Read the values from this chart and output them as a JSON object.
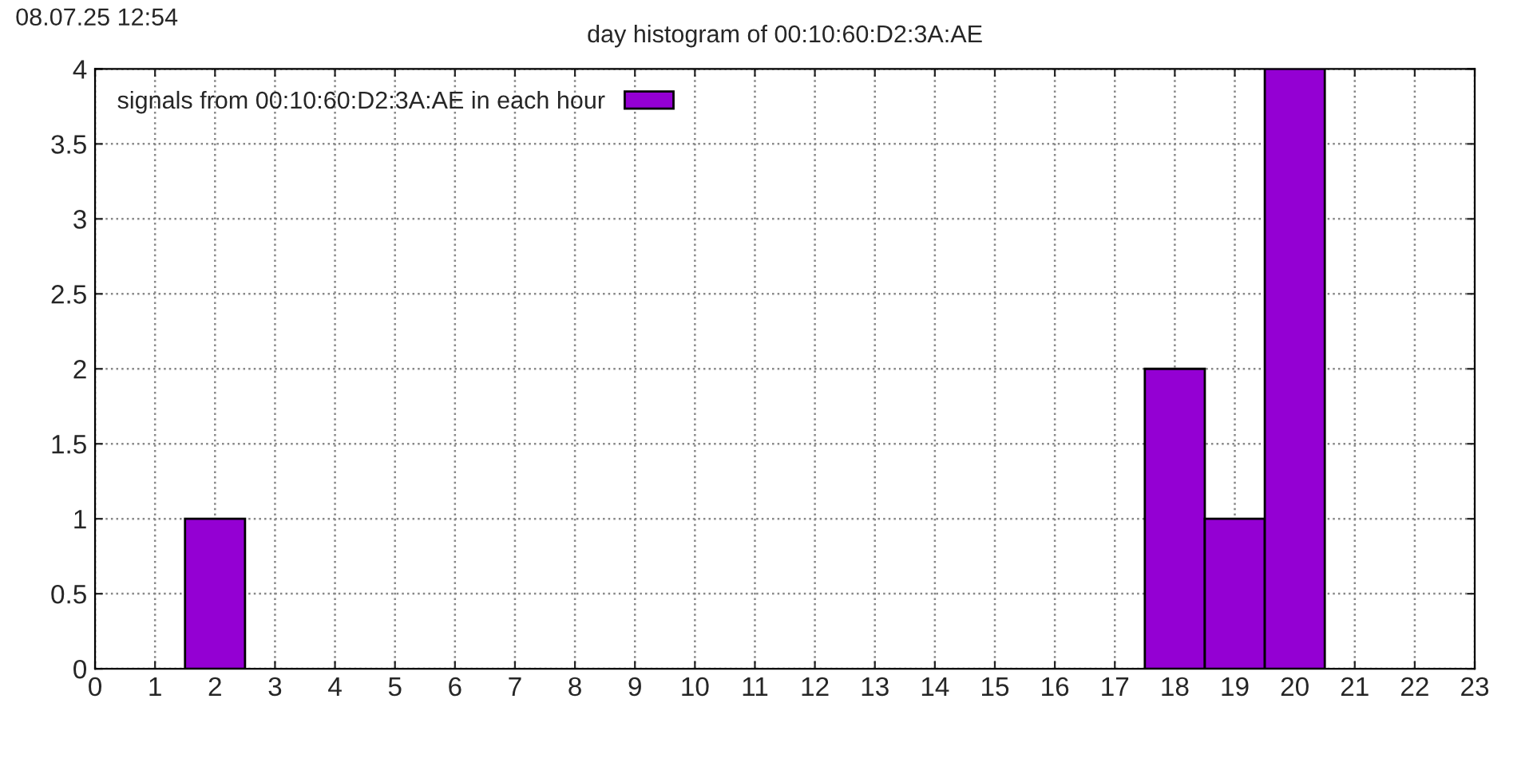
{
  "chart_data": {
    "type": "histogram",
    "title": "day histogram of 00:10:60:D2:3A:AE",
    "annotations": [
      "08.07.25 12:54"
    ],
    "bins": [
      1.5,
      2.5,
      3.5,
      4.5,
      5.5,
      6.5,
      7.5,
      8.5,
      9.5,
      10.5,
      11.5,
      12.5,
      13.5,
      14.5,
      15.5,
      16.5,
      17.5,
      18.5,
      19.5,
      20.5
    ],
    "series": [
      {
        "name": "signals from 00:10:60:D2:3A:AE in each hour",
        "color": "#9400d3",
        "values": [
          1,
          0,
          0,
          0,
          0,
          0,
          0,
          0,
          0,
          0,
          0,
          0,
          0,
          0,
          0,
          0,
          2,
          1,
          4
        ]
      }
    ],
    "xlim": [
      0,
      23
    ],
    "xticks": [
      0,
      1,
      2,
      3,
      4,
      5,
      6,
      7,
      8,
      9,
      10,
      11,
      12,
      13,
      14,
      15,
      16,
      17,
      18,
      19,
      20,
      21,
      22,
      23
    ],
    "ylim": [
      0,
      4
    ],
    "yticks": [
      0,
      0.5,
      1,
      1.5,
      2,
      2.5,
      3,
      3.5,
      4
    ],
    "grid": true,
    "legend": "top left"
  }
}
